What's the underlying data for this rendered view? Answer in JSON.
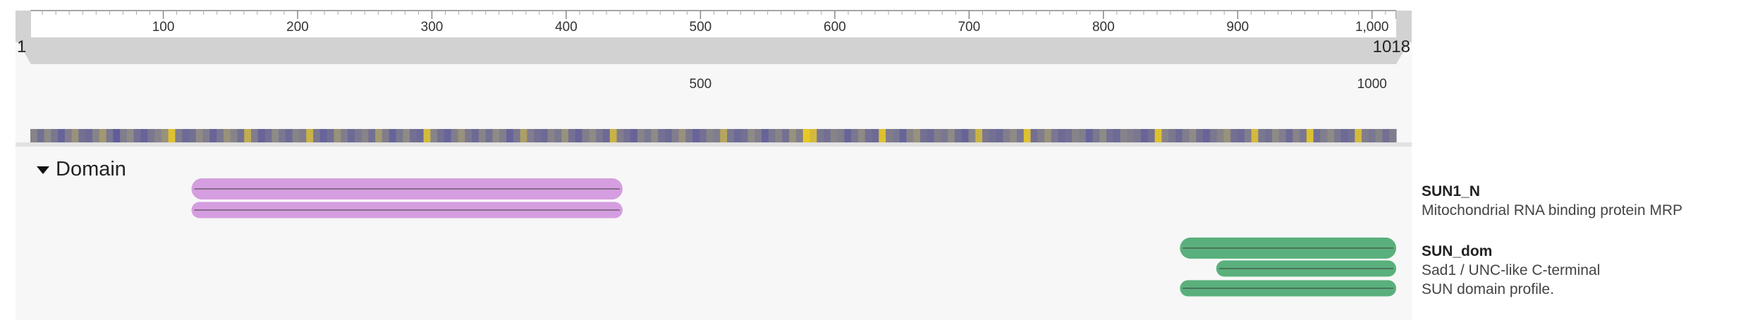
{
  "ruler": {
    "start_label": "1",
    "end_label": "1018",
    "length": 1018,
    "ticks": [
      "100",
      "200",
      "300",
      "400",
      "500",
      "600",
      "700",
      "800",
      "900",
      "1,000"
    ],
    "tick_values": [
      100,
      200,
      300,
      400,
      500,
      600,
      700,
      800,
      900,
      1000
    ]
  },
  "sequence_track": {
    "labels": [
      "500",
      "1000"
    ],
    "label_positions": [
      500,
      1000
    ]
  },
  "heatmap": {
    "colors": {
      "low": "#4b4aa6",
      "mid": "#8e8a86",
      "high": "#f2cf1c"
    },
    "values": [
      0.45,
      0.3,
      0.5,
      0.35,
      0.2,
      0.4,
      0.55,
      0.3,
      0.25,
      0.45,
      0.6,
      0.35,
      0.15,
      0.4,
      0.5,
      0.3,
      0.2,
      0.35,
      0.45,
      0.55,
      0.9,
      0.4,
      0.25,
      0.3,
      0.5,
      0.4,
      0.2,
      0.35,
      0.55,
      0.45,
      0.3,
      0.75,
      0.4,
      0.2,
      0.3,
      0.5,
      0.35,
      0.25,
      0.45,
      0.4,
      0.8,
      0.35,
      0.2,
      0.3,
      0.55,
      0.4,
      0.25,
      0.35,
      0.45,
      0.3,
      0.6,
      0.4,
      0.2,
      0.35,
      0.5,
      0.3,
      0.25,
      0.85,
      0.45,
      0.3,
      0.2,
      0.4,
      0.55,
      0.35,
      0.25,
      0.45,
      0.3,
      0.5,
      0.4,
      0.2,
      0.35,
      0.65,
      0.4,
      0.3,
      0.25,
      0.45,
      0.35,
      0.55,
      0.3,
      0.2,
      0.4,
      0.5,
      0.35,
      0.25,
      0.8,
      0.4,
      0.3,
      0.2,
      0.45,
      0.35,
      0.5,
      0.3,
      0.25,
      0.4,
      0.55,
      0.35,
      0.2,
      0.3,
      0.45,
      0.4,
      0.7,
      0.35,
      0.25,
      0.3,
      0.5,
      0.4,
      0.2,
      0.35,
      0.45,
      0.3,
      0.55,
      0.4,
      0.95,
      0.85,
      0.35,
      0.3,
      0.45,
      0.4,
      0.2,
      0.35,
      0.5,
      0.3,
      0.25,
      0.9,
      0.4,
      0.35,
      0.2,
      0.45,
      0.55,
      0.3,
      0.25,
      0.4,
      0.35,
      0.5,
      0.3,
      0.2,
      0.45,
      0.8,
      0.35,
      0.3,
      0.25,
      0.4,
      0.5,
      0.35,
      0.9,
      0.3,
      0.4,
      0.55,
      0.35,
      0.25,
      0.3,
      0.45,
      0.4,
      0.2,
      0.35,
      0.5,
      0.3,
      0.25,
      0.45,
      0.4,
      0.35,
      0.2,
      0.3,
      0.9,
      0.45,
      0.35,
      0.25,
      0.4,
      0.5,
      0.3,
      0.2,
      0.35,
      0.45,
      0.55,
      0.3,
      0.25,
      0.4,
      0.85,
      0.35,
      0.3,
      0.5,
      0.4,
      0.25,
      0.45,
      0.35,
      0.9,
      0.3,
      0.4,
      0.5,
      0.35,
      0.25,
      0.3,
      0.85,
      0.4,
      0.35,
      0.45,
      0.3,
      0.4
    ]
  },
  "track": {
    "title": "Domain",
    "expanded": true
  },
  "features": [
    {
      "name": "SUN1_N",
      "description_lines": [
        "Mitochondrial RNA binding protein MRP"
      ],
      "color": "#d59ee0",
      "bars": [
        {
          "start": 121,
          "end": 442
        },
        {
          "start": 121,
          "end": 442
        }
      ]
    },
    {
      "name": "SUN_dom",
      "description_lines": [
        "Sad1 / UNC-like C-terminal",
        "SUN domain profile."
      ],
      "color": "#5ab07c",
      "bars": [
        {
          "start": 857,
          "end": 1018
        },
        {
          "start": 884,
          "end": 1018
        },
        {
          "start": 857,
          "end": 1018
        }
      ]
    }
  ]
}
